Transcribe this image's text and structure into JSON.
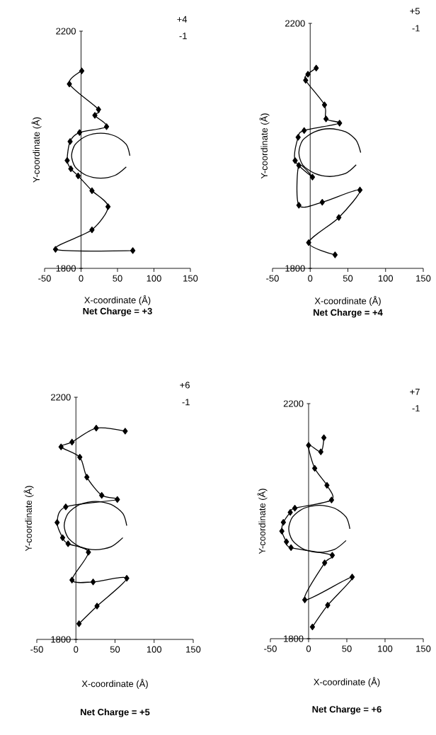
{
  "chart_data": [
    {
      "type": "line",
      "title": "Net Charge = +3",
      "xlabel": "X-coordinate (Å)",
      "ylabel": "Y-coordinate (Å)",
      "annotations": [
        "+4",
        "-1"
      ],
      "xlim": [
        -50,
        150
      ],
      "ylim": [
        1800,
        2200
      ],
      "xticks": [
        -50,
        0,
        50,
        100,
        150
      ],
      "yticks": [
        1800,
        2200
      ],
      "marker": "diamond",
      "series": [
        {
          "color": "#000000",
          "x": [
            1,
            -16,
            24,
            19,
            35,
            -2,
            -15,
            -19,
            -14,
            -4,
            15,
            37,
            15,
            -35,
            71
          ],
          "values": [
            2133,
            2111,
            2068,
            2058,
            2039,
            2029,
            2014,
            1982,
            1968,
            1956,
            1931,
            1904,
            1865,
            1832,
            1830
          ]
        },
        {
          "color": "#000000",
          "marker": "none",
          "x": [
            67,
            62,
            47,
            27,
            7,
            -8,
            -13,
            -8,
            7,
            27,
            47,
            62
          ],
          "values": [
            1990,
            2009,
            2023,
            2028,
            2023,
            2009,
            1990,
            1971,
            1957,
            1952,
            1957,
            1971
          ]
        }
      ]
    },
    {
      "type": "line",
      "title": "Net Charge = +4",
      "xlabel": "X-coordinate (Å)",
      "ylabel": "Y-coordinate (Å)",
      "annotations": [
        "+5",
        "-1"
      ],
      "xlim": [
        -50,
        150
      ],
      "ylim": [
        1800,
        2200
      ],
      "xticks": [
        -50,
        0,
        50,
        100,
        150
      ],
      "yticks": [
        1800,
        2200
      ],
      "marker": "diamond",
      "series": [
        {
          "color": "#000000",
          "x": [
            8,
            -3,
            -6,
            19,
            21,
            39,
            -8,
            -16,
            -20,
            3,
            -15,
            -15,
            16,
            66,
            38,
            -2,
            33
          ],
          "values": [
            2127,
            2117,
            2107,
            2067,
            2044,
            2037,
            2025,
            2014,
            1976,
            1949,
            1968,
            1903,
            1908,
            1928,
            1883,
            1842,
            1822
          ]
        },
        {
          "color": "#000000",
          "marker": "none",
          "x": [
            67,
            61,
            47,
            26,
            6,
            -10,
            -15,
            -10,
            6,
            26,
            47,
            61
          ],
          "values": [
            1989,
            2009,
            2023,
            2028,
            2023,
            2009,
            1989,
            1969,
            1955,
            1950,
            1955,
            1969
          ]
        }
      ]
    },
    {
      "type": "line",
      "title": "Net Charge = +5",
      "xlabel": "X-coordinate (Å)",
      "ylabel": "Y-coordinate (Å)",
      "annotations": [
        "+6",
        "-1"
      ],
      "xlim": [
        -50,
        150
      ],
      "ylim": [
        1800,
        2200
      ],
      "xticks": [
        -50,
        0,
        50,
        100,
        150
      ],
      "yticks": [
        1800,
        2200
      ],
      "marker": "diamond",
      "series": [
        {
          "color": "#000000",
          "x": [
            63,
            26,
            -5,
            -19,
            5,
            14,
            33,
            53,
            -13,
            -24,
            -17,
            -10,
            16,
            -5,
            22,
            65,
            27,
            4
          ],
          "values": [
            2144,
            2149,
            2126,
            2118,
            2101,
            2068,
            2038,
            2031,
            2019,
            1993,
            1968,
            1958,
            1944,
            1898,
            1895,
            1901,
            1855,
            1826
          ]
        },
        {
          "color": "#000000",
          "marker": "none",
          "x": [
            65,
            60,
            45,
            25,
            5,
            -10,
            -15,
            -10,
            5,
            25,
            45,
            60
          ],
          "values": [
            1988,
            2008,
            2023,
            2028,
            2023,
            2008,
            1988,
            1968,
            1953,
            1948,
            1953,
            1968
          ]
        }
      ]
    },
    {
      "type": "line",
      "title": "Net Charge = +6",
      "xlabel": "X-coordinate (Å)",
      "ylabel": "Y-coordinate (Å)",
      "annotations": [
        "+7",
        "-1"
      ],
      "xlim": [
        -50,
        150
      ],
      "ylim": [
        1800,
        2200
      ],
      "xticks": [
        -50,
        0,
        50,
        100,
        150
      ],
      "yticks": [
        1800,
        2200
      ],
      "marker": "diamond",
      "series": [
        {
          "color": "#000000",
          "x": [
            20,
            16,
            0,
            8,
            24,
            30,
            -18,
            -24,
            -33,
            -35,
            -29,
            -23,
            31,
            21,
            -5,
            57,
            25,
            5
          ],
          "values": [
            2142,
            2118,
            2129,
            2090,
            2061,
            2036,
            2022,
            2015,
            1998,
            1983,
            1965,
            1955,
            1942,
            1929,
            1866,
            1905,
            1857,
            1820
          ]
        },
        {
          "color": "#000000",
          "marker": "none",
          "x": [
            54,
            49,
            34,
            14,
            -6,
            -21,
            -26,
            -21,
            -6,
            14,
            34,
            49
          ],
          "values": [
            1987,
            2007,
            2022,
            2027,
            2022,
            2007,
            1987,
            1967,
            1952,
            1947,
            1952,
            1967
          ]
        }
      ]
    }
  ]
}
